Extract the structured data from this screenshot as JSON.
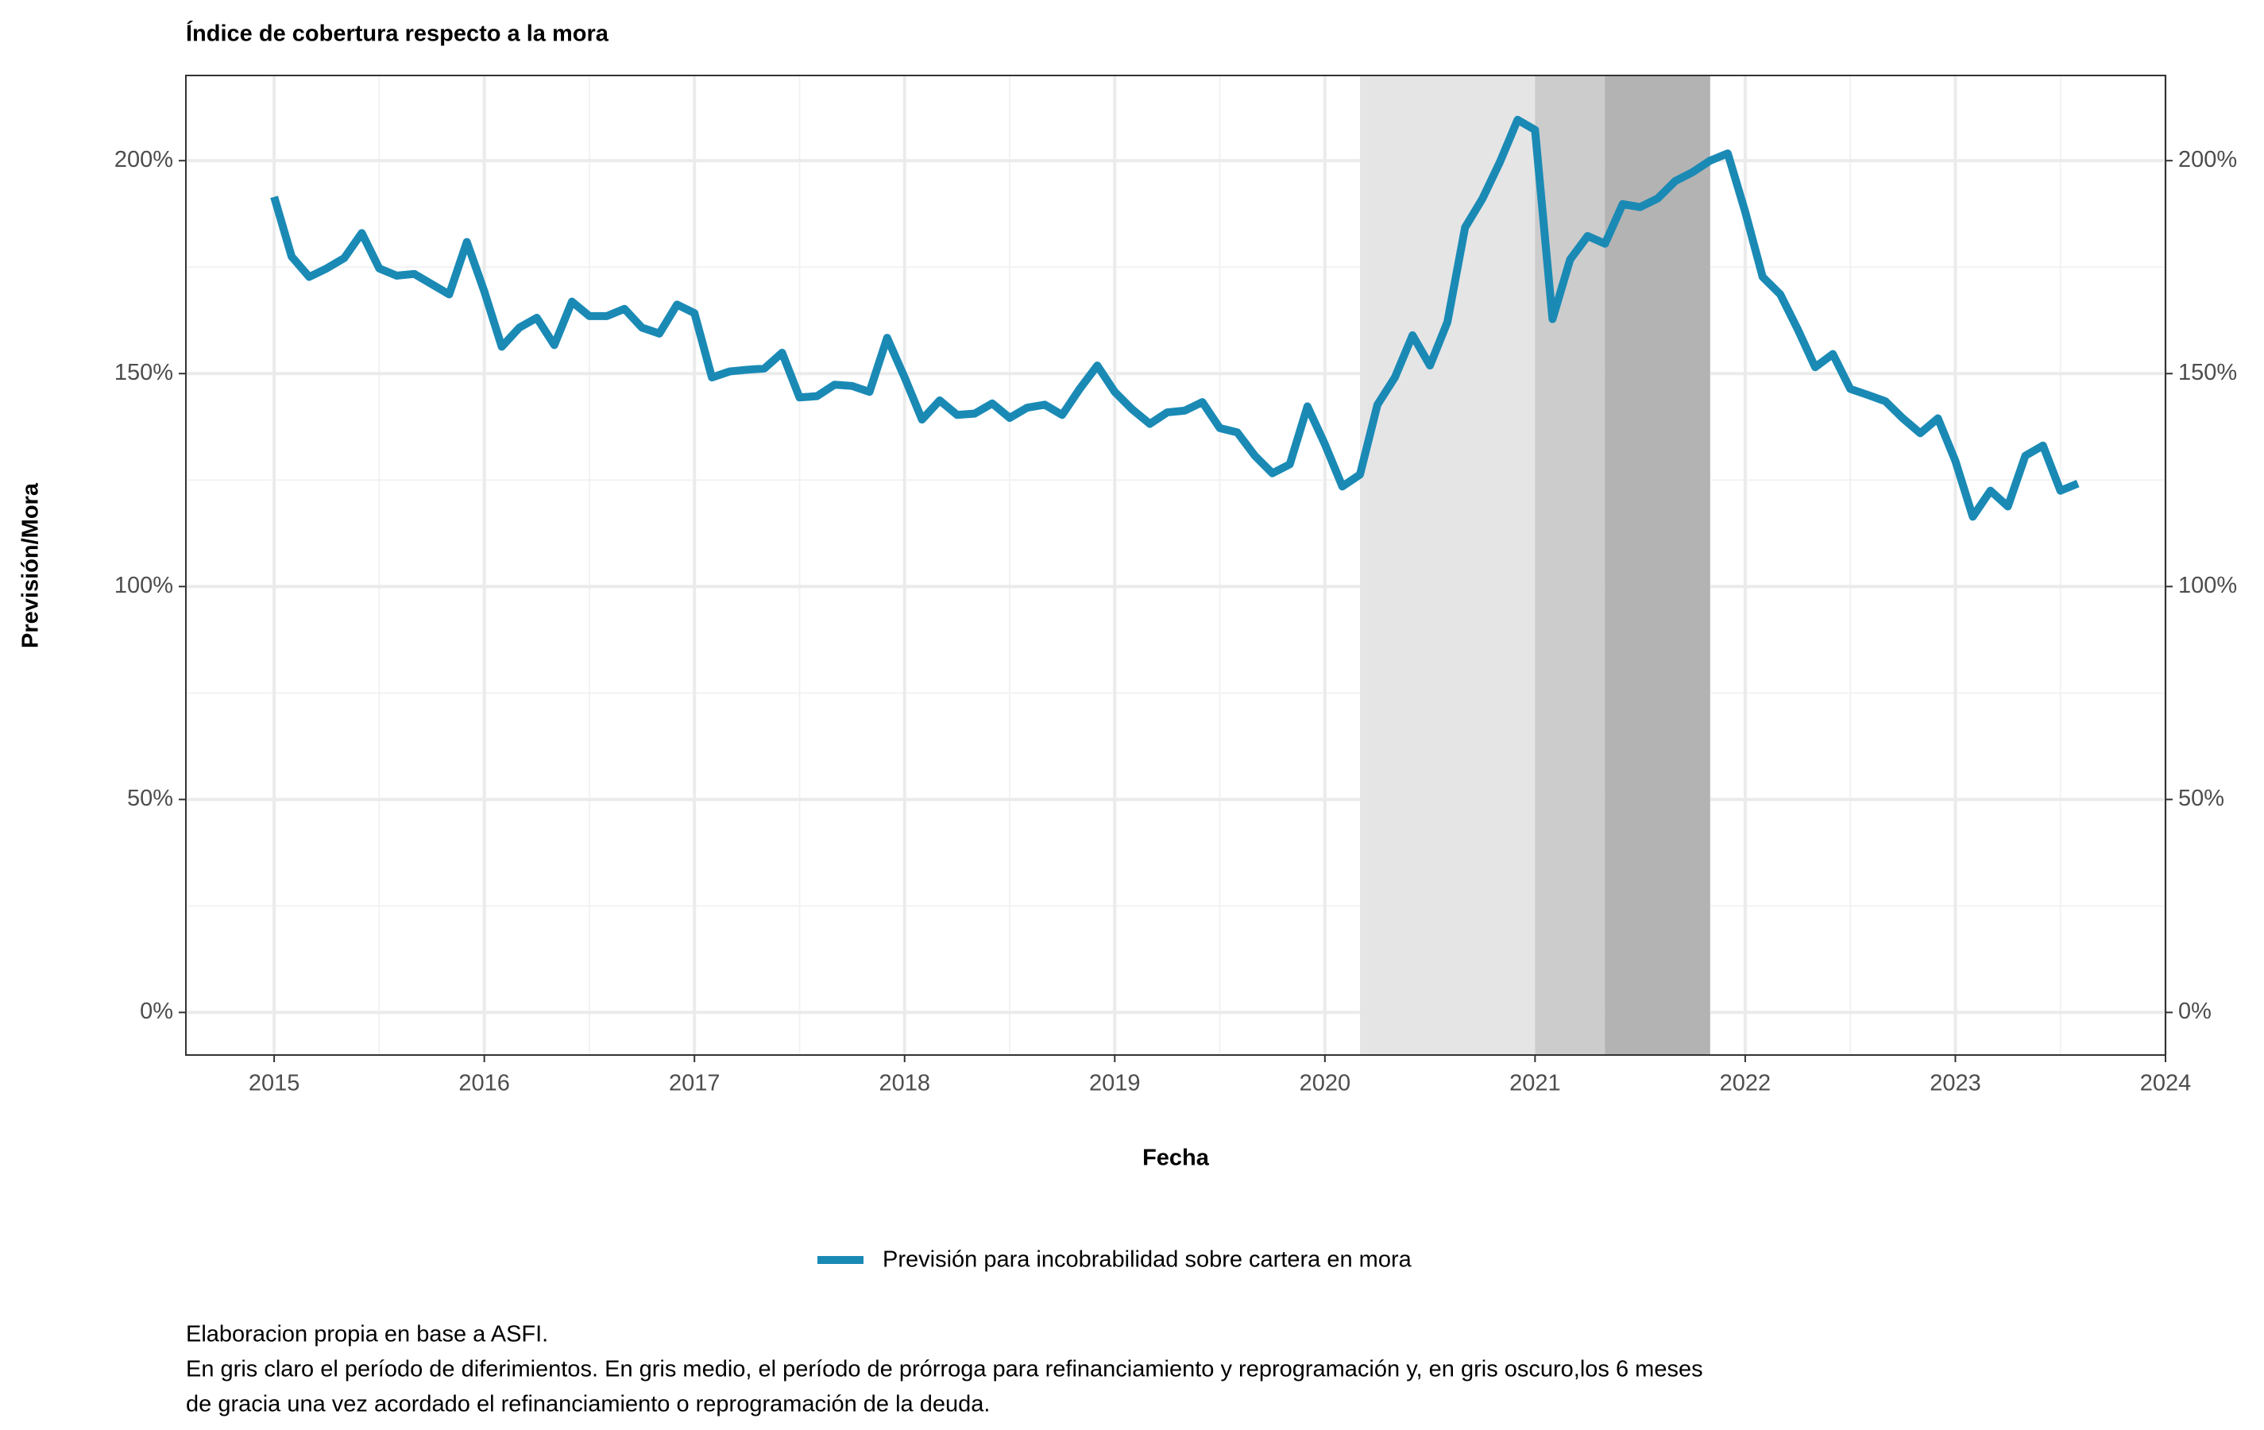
{
  "chart_data": {
    "type": "line",
    "title": "Índice de cobertura respecto a la mora",
    "x_label": "Fecha",
    "y_label": "Previsión/Mora",
    "x": [
      2015,
      2015.083,
      2015.167,
      2015.25,
      2015.333,
      2015.417,
      2015.5,
      2015.583,
      2015.667,
      2015.75,
      2015.833,
      2015.917,
      2016,
      2016.083,
      2016.167,
      2016.25,
      2016.333,
      2016.417,
      2016.5,
      2016.583,
      2016.667,
      2016.75,
      2016.833,
      2016.917,
      2017,
      2017.083,
      2017.167,
      2017.25,
      2017.333,
      2017.417,
      2017.5,
      2017.583,
      2017.667,
      2017.75,
      2017.833,
      2017.917,
      2018,
      2018.083,
      2018.167,
      2018.25,
      2018.333,
      2018.417,
      2018.5,
      2018.583,
      2018.667,
      2018.75,
      2018.833,
      2018.917,
      2019,
      2019.083,
      2019.167,
      2019.25,
      2019.333,
      2019.417,
      2019.5,
      2019.583,
      2019.667,
      2019.75,
      2019.833,
      2019.917,
      2020,
      2020.083,
      2020.167,
      2020.25,
      2020.333,
      2020.417,
      2020.5,
      2020.583,
      2020.667,
      2020.75,
      2020.833,
      2020.917,
      2021,
      2021.083,
      2021.167,
      2021.25,
      2021.333,
      2021.417,
      2021.5,
      2021.583,
      2021.667,
      2021.75,
      2021.833,
      2021.917,
      2022,
      2022.083,
      2022.167,
      2022.25,
      2022.333,
      2022.417,
      2022.5,
      2022.583,
      2022.667,
      2022.75,
      2022.833,
      2022.917,
      2023,
      2023.083,
      2023.167,
      2023.25,
      2023.333,
      2023.417,
      2023.5,
      2023.583
    ],
    "series": [
      {
        "name": "Previsión para incobrabilidad sobre cartera en mora",
        "color": "#1a8ab5",
        "values": [
          191.5,
          177.5,
          172.7,
          174.7,
          177.1,
          183,
          174.7,
          173,
          173.4,
          171,
          168.6,
          180.9,
          169.3,
          156.3,
          160.8,
          163.1,
          156.7,
          166.9,
          163.5,
          163.5,
          165.2,
          160.8,
          159.4,
          166.2,
          164.2,
          149.1,
          150.5,
          150.9,
          151.2,
          154.9,
          144.4,
          144.7,
          147.4,
          147.1,
          145.7,
          158.4,
          149.1,
          139.2,
          143.7,
          140.3,
          140.6,
          143,
          139.6,
          142,
          142.7,
          140.3,
          146.4,
          151.9,
          145.7,
          141.6,
          138.2,
          140.9,
          141.3,
          143.3,
          137.2,
          136.2,
          130.7,
          126.6,
          128.7,
          142.3,
          133.4,
          123.5,
          126.3,
          142.7,
          149.1,
          159,
          151.9,
          162.1,
          184.3,
          191.1,
          199.7,
          209.6,
          207.2,
          162.8,
          176.8,
          182.3,
          180.5,
          189.8,
          189.1,
          191.1,
          195.2,
          197.3,
          200,
          201.7,
          188,
          172.7,
          168.6,
          160.4,
          151.5,
          154.6,
          146.4,
          145,
          143.5,
          139.5,
          136,
          139.5,
          129.5,
          116.4,
          122.5,
          118.8,
          130.7,
          133.1,
          122.5,
          124.2
        ]
      }
    ],
    "shaded_periods": [
      {
        "start": 2020.167,
        "end": 2021,
        "color": "#e5e5e5"
      },
      {
        "start": 2021,
        "end": 2021.333,
        "color": "#cccccc"
      },
      {
        "start": 2021.333,
        "end": 2021.833,
        "color": "#b3b3b3"
      }
    ],
    "xlim": [
      2014.58,
      2024
    ],
    "xticks": [
      2015,
      2016,
      2017,
      2018,
      2019,
      2020,
      2021,
      2022,
      2023,
      2024
    ],
    "minor_xticks": [
      2015.5,
      2016.5,
      2017.5,
      2018.5,
      2019.5,
      2020.5,
      2021.5,
      2022.5,
      2023.5
    ],
    "ylim": [
      -10,
      220
    ],
    "yticks": [
      {
        "value": 0,
        "label": "0%"
      },
      {
        "value": 50,
        "label": "50%"
      },
      {
        "value": 100,
        "label": "100%"
      },
      {
        "value": 150,
        "label": "150%"
      },
      {
        "value": 200,
        "label": "200%"
      }
    ],
    "minor_yticks": [
      25,
      75,
      125,
      175
    ],
    "y2lim": [
      -10,
      220
    ],
    "y2ticks": [
      {
        "value": 0,
        "label": "0%"
      },
      {
        "value": 50,
        "label": "50%"
      },
      {
        "value": 100,
        "label": "100%"
      },
      {
        "value": 150,
        "label": "150%"
      },
      {
        "value": 200,
        "label": "200%"
      }
    ],
    "grid": true,
    "legend": "bottom",
    "caption": [
      "Elaboracion propia en base a ASFI.",
      "En gris claro el período de diferimientos. En gris medio, el período de prórroga para refinanciamiento y reprogramación y, en gris oscuro,los 6 meses",
      "de gracia una vez acordado el refinanciamiento o reprogramación de la deuda."
    ]
  }
}
